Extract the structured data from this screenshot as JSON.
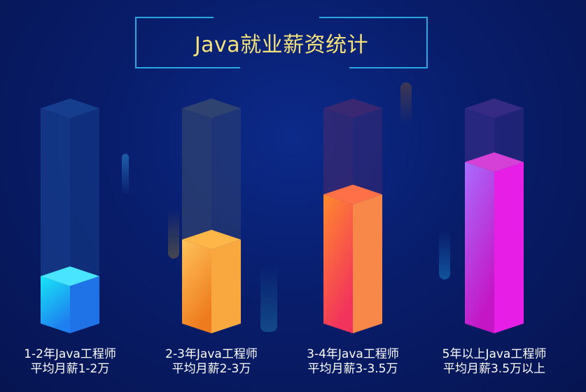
{
  "title": "Java就业薪资统计",
  "chart_data": {
    "type": "bar",
    "title": "Java就业薪资统计",
    "categories": [
      [
        "1-2年Java工程师",
        "平均月薪1-2万"
      ],
      [
        "2-3年Java工程师",
        "平均月薪2-3万"
      ],
      [
        "3-4年Java工程师",
        "平均月薪3-3.5万"
      ],
      [
        "5年以上Java工程师",
        "平均月薪3.5万以上"
      ]
    ],
    "values": [
      0.22,
      0.39,
      0.6,
      0.75
    ],
    "ylim": [
      0,
      1
    ],
    "colors": [
      {
        "front": [
          "#17e6f6",
          "#1e7ff0"
        ],
        "side": "#1f73e6",
        "top": "#49e4ff",
        "ghost": "#1b4a9c"
      },
      {
        "front": [
          "#ffc35a",
          "#ee7c1e"
        ],
        "side": "#f9a73f",
        "top": "#ffb648",
        "ghost": "#3c4d6e"
      },
      {
        "front": [
          "#ff8a2d",
          "#f2335c"
        ],
        "side": "#f7884a",
        "top": "#ff7048",
        "ghost": "#4a2a6e"
      },
      {
        "front": [
          "#a96cff",
          "#c416c4"
        ],
        "side": "#e61ee6",
        "top": "#d540d6",
        "ghost": "#44308f"
      }
    ]
  }
}
